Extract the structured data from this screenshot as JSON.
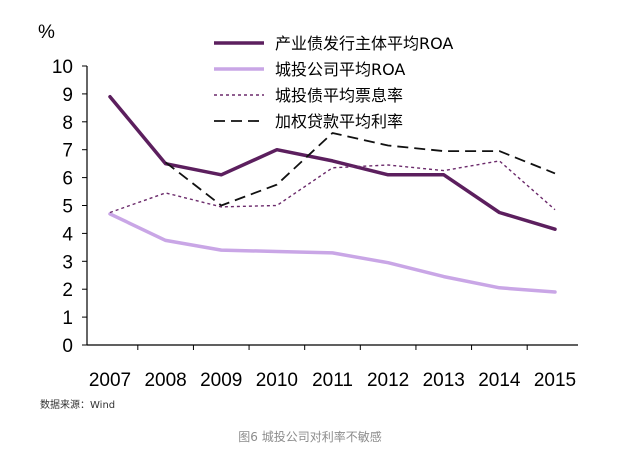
{
  "chart_data": {
    "type": "line",
    "title": "",
    "unit_label": "%",
    "categories": [
      "2007",
      "2008",
      "2009",
      "2010",
      "2011",
      "2012",
      "2013",
      "2014",
      "2015"
    ],
    "ylim": [
      0,
      10
    ],
    "yticks": [
      0,
      1,
      2,
      3,
      4,
      5,
      6,
      7,
      8,
      9,
      10
    ],
    "grid": false,
    "legend_position": "top-right",
    "series": [
      {
        "name": "产业债发行主体平均ROA",
        "color": "#5c1f5e",
        "style": "solid-thick",
        "values": [
          8.9,
          6.5,
          6.1,
          7.0,
          6.6,
          6.1,
          6.1,
          4.75,
          4.15
        ]
      },
      {
        "name": "城投公司平均ROA",
        "color": "#c9a6e6",
        "style": "solid-thick",
        "values": [
          4.7,
          3.75,
          3.4,
          3.35,
          3.3,
          2.95,
          2.45,
          2.05,
          1.9
        ]
      },
      {
        "name": "城投债平均票息率",
        "color": "#6b2a6b",
        "style": "dotted",
        "values": [
          4.75,
          5.45,
          4.95,
          5.0,
          6.35,
          6.45,
          6.25,
          6.6,
          4.85
        ]
      },
      {
        "name": "加权贷款平均利率",
        "color": "#111111",
        "style": "dashed",
        "values": [
          null,
          6.55,
          5.0,
          5.75,
          7.6,
          7.15,
          6.95,
          6.95,
          6.15
        ]
      }
    ]
  },
  "source_text": "数据来源：Wind",
  "caption_text": "图6 城投公司对利率不敏感"
}
